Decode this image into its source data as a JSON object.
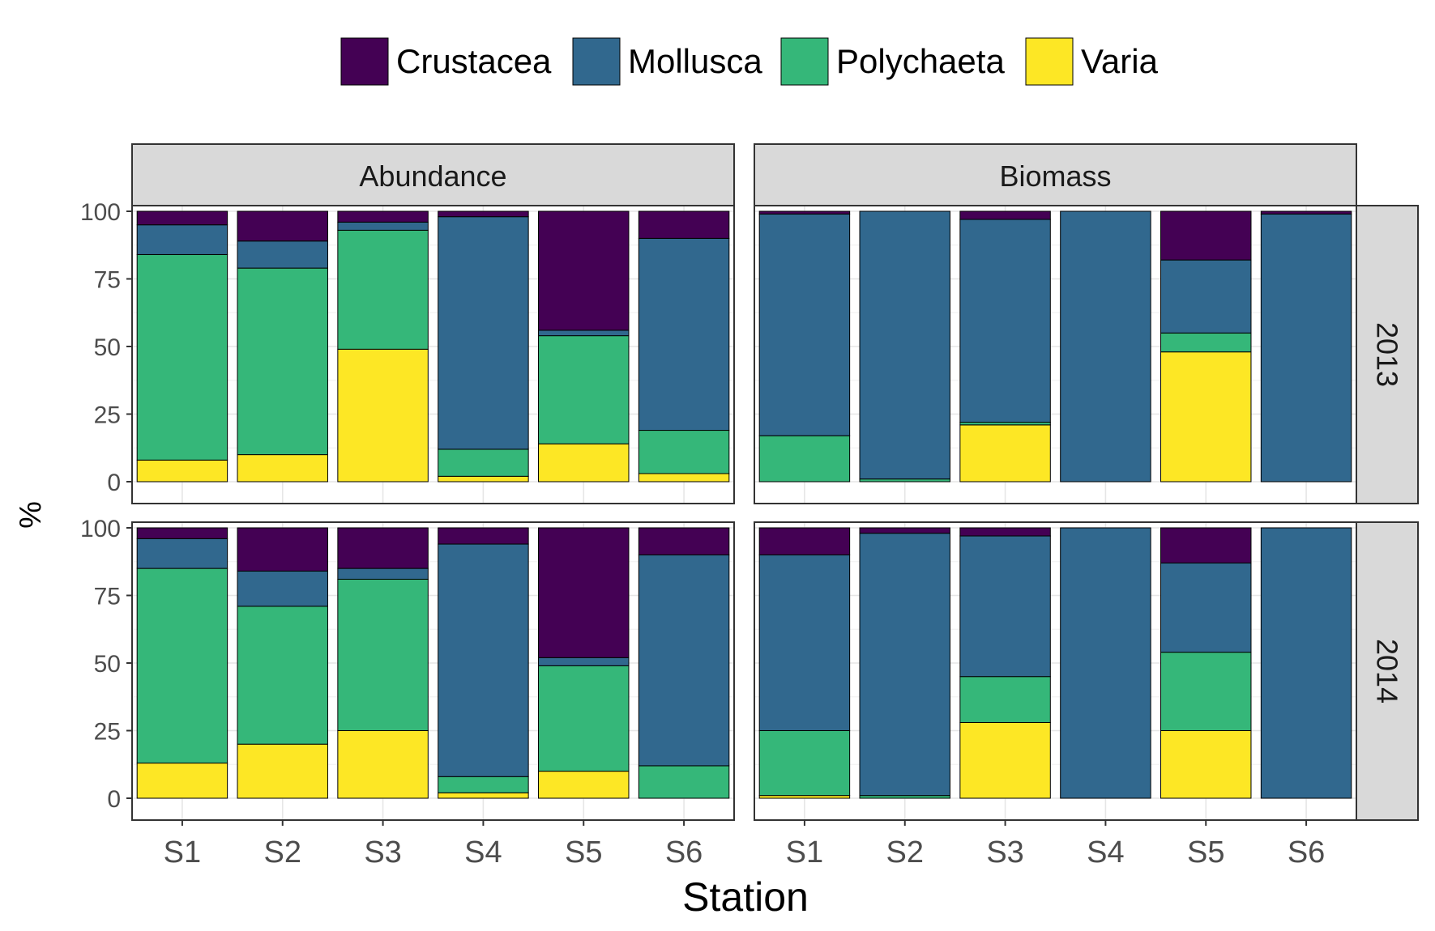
{
  "chart_data": {
    "type": "bar",
    "stacked": true,
    "legend_position": "top",
    "legend": [
      {
        "name": "Crustacea",
        "color": "#440154"
      },
      {
        "name": "Mollusca",
        "color": "#31688E"
      },
      {
        "name": "Polychaeta",
        "color": "#35B779"
      },
      {
        "name": "Varia",
        "color": "#FDE725"
      }
    ],
    "stack_order": [
      "Varia",
      "Polychaeta",
      "Mollusca",
      "Crustacea"
    ],
    "categories": [
      "S1",
      "S2",
      "S3",
      "S4",
      "S5",
      "S6"
    ],
    "xlabel": "Station",
    "ylabel": "%",
    "ylim": [
      0,
      100
    ],
    "yticks": [
      "0",
      "25",
      "50",
      "75",
      "100"
    ],
    "grid": true,
    "column_facets": [
      "Abundance",
      "Biomass"
    ],
    "row_facets": [
      "2013",
      "2014"
    ],
    "panels": [
      {
        "column": "Abundance",
        "row": "2013",
        "series": [
          {
            "name": "Crustacea",
            "values": [
              5,
              11,
              4,
              2,
              44,
              10
            ]
          },
          {
            "name": "Mollusca",
            "values": [
              11,
              10,
              3,
              86,
              2,
              71
            ]
          },
          {
            "name": "Polychaeta",
            "values": [
              76,
              69,
              44,
              10,
              40,
              16
            ]
          },
          {
            "name": "Varia",
            "values": [
              8,
              10,
              49,
              2,
              14,
              3
            ]
          }
        ]
      },
      {
        "column": "Biomass",
        "row": "2013",
        "series": [
          {
            "name": "Crustacea",
            "values": [
              1,
              0,
              3,
              0,
              18,
              1
            ]
          },
          {
            "name": "Mollusca",
            "values": [
              82,
              99,
              75,
              100,
              27,
              99
            ]
          },
          {
            "name": "Polychaeta",
            "values": [
              17,
              1,
              1,
              0,
              7,
              0
            ]
          },
          {
            "name": "Varia",
            "values": [
              0,
              0,
              21,
              0,
              48,
              0
            ]
          }
        ]
      },
      {
        "column": "Abundance",
        "row": "2014",
        "series": [
          {
            "name": "Crustacea",
            "values": [
              4,
              16,
              15,
              6,
              48,
              10
            ]
          },
          {
            "name": "Mollusca",
            "values": [
              11,
              13,
              4,
              86,
              3,
              78
            ]
          },
          {
            "name": "Polychaeta",
            "values": [
              72,
              51,
              56,
              6,
              39,
              12
            ]
          },
          {
            "name": "Varia",
            "values": [
              13,
              20,
              25,
              2,
              10,
              0
            ]
          }
        ]
      },
      {
        "column": "Biomass",
        "row": "2014",
        "series": [
          {
            "name": "Crustacea",
            "values": [
              10,
              2,
              3,
              0,
              13,
              0
            ]
          },
          {
            "name": "Mollusca",
            "values": [
              65,
              97,
              52,
              100,
              33,
              100
            ]
          },
          {
            "name": "Polychaeta",
            "values": [
              24,
              1,
              17,
              0,
              29,
              0
            ]
          },
          {
            "name": "Varia",
            "values": [
              1,
              0,
              28,
              0,
              25,
              0
            ]
          }
        ]
      }
    ]
  }
}
